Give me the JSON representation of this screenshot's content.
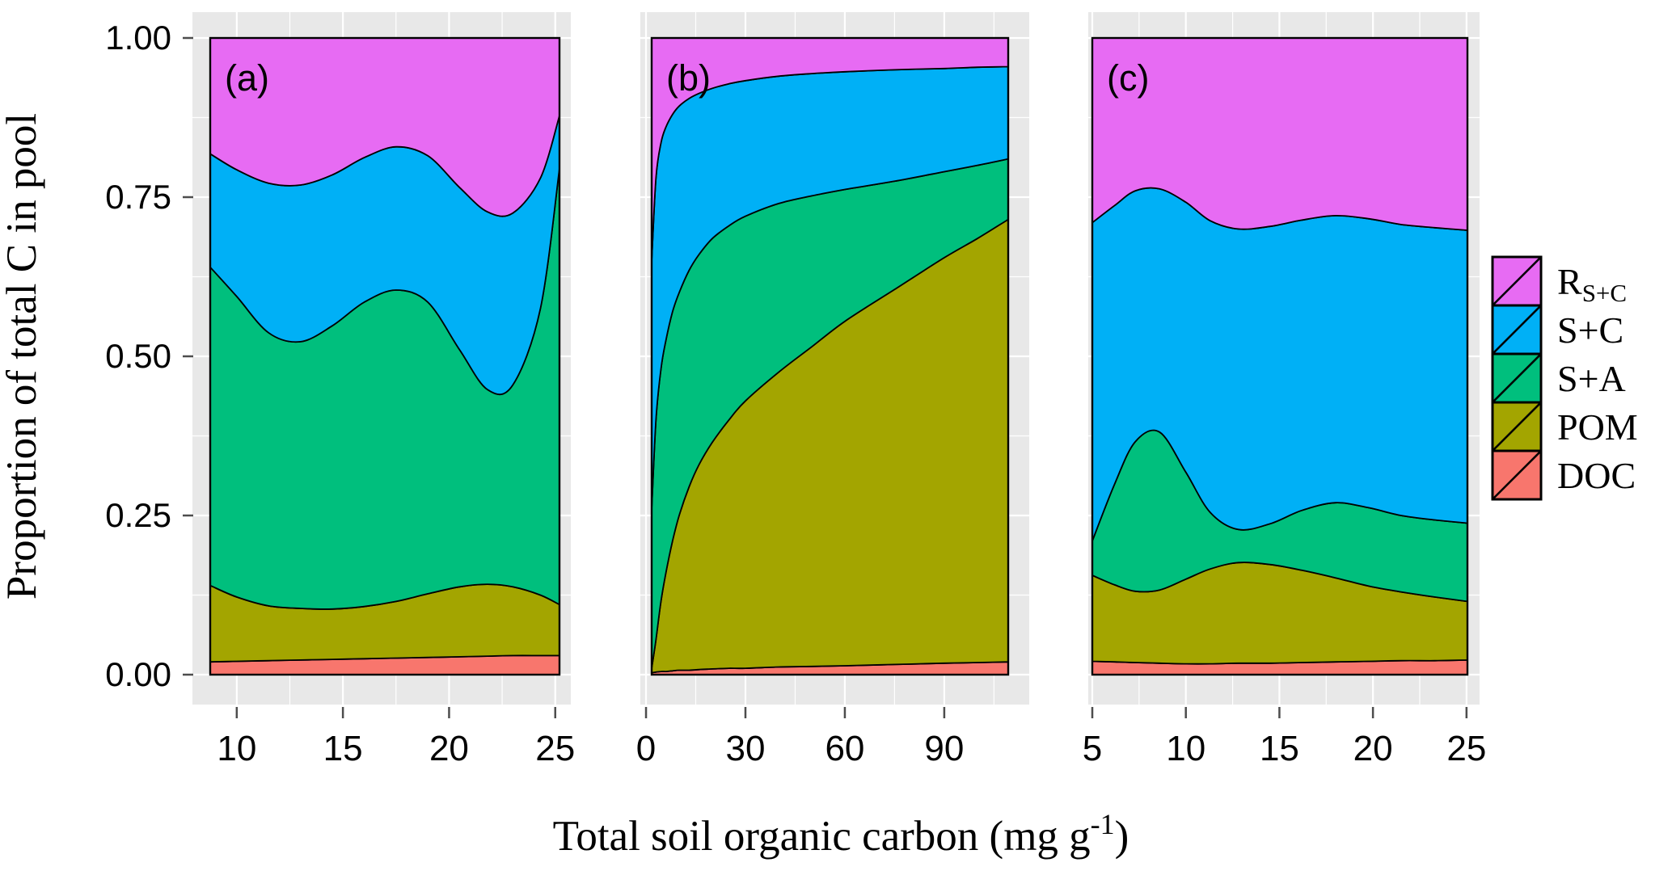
{
  "colors": {
    "rsc": "#E76BF3",
    "sc": "#00B0F6",
    "sa": "#00BF7D",
    "pom": "#A3A500",
    "doc": "#F8766D",
    "panel_bg": "#E8E8E8",
    "grid": "#FFFFFF",
    "frame": "#000000",
    "tick_mark": "#4d4d4d"
  },
  "axes": {
    "y": {
      "title": "Proportion of total C in pool",
      "ticks": [
        {
          "value": 0.0,
          "label": "0.00"
        },
        {
          "value": 0.25,
          "label": "0.25"
        },
        {
          "value": 0.5,
          "label": "0.50"
        },
        {
          "value": 0.75,
          "label": "0.75"
        },
        {
          "value": 1.0,
          "label": "1.00"
        }
      ]
    },
    "x": {
      "title_main": "Total soil organic carbon (mg g",
      "title_sup": "-1",
      "title_close": ")"
    }
  },
  "legend": {
    "entries": [
      {
        "key": "rsc",
        "label_main": "R",
        "label_sub": "S+C",
        "color": "#E76BF3"
      },
      {
        "key": "sc",
        "label": "S+C",
        "color": "#00B0F6"
      },
      {
        "key": "sa",
        "label": "S+A",
        "color": "#00BF7D"
      },
      {
        "key": "pom",
        "label": "POM",
        "color": "#A3A500"
      },
      {
        "key": "doc",
        "label": "DOC",
        "color": "#F8766D"
      }
    ]
  },
  "chart_data": {
    "type": "area",
    "stacked": true,
    "normalized": true,
    "xlabel": "Total soil organic carbon (mg g-1)",
    "ylabel": "Proportion of total C in pool",
    "ylim": [
      0,
      1
    ],
    "grid": true,
    "legend_position": "right",
    "series": [
      {
        "name": "DOC",
        "color_key": "doc"
      },
      {
        "name": "POM",
        "color_key": "pom"
      },
      {
        "name": "S+A",
        "color_key": "sa"
      },
      {
        "name": "S+C",
        "color_key": "sc"
      },
      {
        "name": "R_S+C",
        "color_key": "rsc"
      }
    ],
    "note": "tops are cumulative stacked proportions (0-1) at each x; band = between previous top and own top",
    "panels": [
      {
        "panel_label": "(a)",
        "x_domain": [
          8.75,
          25.2
        ],
        "x_ticks": [
          10,
          15,
          20,
          25
        ],
        "x": [
          8.75,
          10,
          11.5,
          13,
          14.5,
          16,
          17.5,
          19,
          20.5,
          21.8,
          23,
          24.3,
          25.2
        ],
        "tops": {
          "DOC": [
            0.02,
            0.021,
            0.022,
            0.023,
            0.024,
            0.025,
            0.026,
            0.027,
            0.028,
            0.029,
            0.03,
            0.03,
            0.03
          ],
          "POM": [
            0.14,
            0.122,
            0.108,
            0.104,
            0.103,
            0.107,
            0.115,
            0.127,
            0.138,
            0.142,
            0.138,
            0.125,
            0.11
          ],
          "S+A": [
            0.64,
            0.594,
            0.537,
            0.523,
            0.548,
            0.585,
            0.604,
            0.585,
            0.51,
            0.448,
            0.455,
            0.575,
            0.795
          ],
          "S+C": [
            0.818,
            0.793,
            0.772,
            0.769,
            0.785,
            0.812,
            0.829,
            0.815,
            0.765,
            0.727,
            0.725,
            0.78,
            0.878
          ],
          "R_S+C": [
            1,
            1,
            1,
            1,
            1,
            1,
            1,
            1,
            1,
            1,
            1,
            1,
            1
          ]
        }
      },
      {
        "panel_label": "(b)",
        "x_domain": [
          1.7,
          109.3
        ],
        "x_ticks": [
          0,
          30,
          60,
          90
        ],
        "x": [
          1.7,
          3,
          4.5,
          6,
          8,
          10,
          13,
          16,
          20,
          25,
          30,
          40,
          50,
          60,
          75,
          90,
          100,
          109.3
        ],
        "tops": {
          "DOC": [
            0.003,
            0.004,
            0.005,
            0.005,
            0.006,
            0.007,
            0.007,
            0.008,
            0.009,
            0.01,
            0.01,
            0.012,
            0.013,
            0.014,
            0.016,
            0.018,
            0.019,
            0.02
          ],
          "POM": [
            0.01,
            0.055,
            0.115,
            0.16,
            0.21,
            0.25,
            0.295,
            0.33,
            0.365,
            0.4,
            0.43,
            0.475,
            0.515,
            0.555,
            0.605,
            0.655,
            0.685,
            0.715
          ],
          "S+A": [
            0.26,
            0.4,
            0.48,
            0.525,
            0.57,
            0.6,
            0.635,
            0.66,
            0.685,
            0.705,
            0.72,
            0.74,
            0.752,
            0.762,
            0.775,
            0.79,
            0.8,
            0.81
          ],
          "S+C": [
            0.65,
            0.78,
            0.835,
            0.86,
            0.88,
            0.893,
            0.905,
            0.913,
            0.921,
            0.928,
            0.933,
            0.94,
            0.944,
            0.947,
            0.95,
            0.952,
            0.954,
            0.955
          ],
          "R_S+C": [
            1,
            1,
            1,
            1,
            1,
            1,
            1,
            1,
            1,
            1,
            1,
            1,
            1,
            1,
            1,
            1,
            1,
            1
          ]
        }
      },
      {
        "panel_label": "(c)",
        "x_domain": [
          5.0,
          25.05
        ],
        "x_ticks": [
          5,
          10,
          15,
          20,
          25
        ],
        "x": [
          5.0,
          6.2,
          7.3,
          8.6,
          10,
          11.3,
          12.8,
          14.5,
          16.2,
          18,
          19.8,
          21.5,
          23.3,
          25.05
        ],
        "tops": {
          "DOC": [
            0.021,
            0.02,
            0.019,
            0.018,
            0.017,
            0.017,
            0.018,
            0.018,
            0.019,
            0.02,
            0.021,
            0.022,
            0.022,
            0.023
          ],
          "POM": [
            0.156,
            0.141,
            0.131,
            0.133,
            0.15,
            0.166,
            0.176,
            0.173,
            0.164,
            0.152,
            0.139,
            0.13,
            0.122,
            0.115
          ],
          "S+A": [
            0.21,
            0.3,
            0.366,
            0.381,
            0.318,
            0.255,
            0.228,
            0.237,
            0.258,
            0.27,
            0.262,
            0.25,
            0.243,
            0.238
          ],
          "S+C": [
            0.71,
            0.737,
            0.76,
            0.763,
            0.742,
            0.713,
            0.7,
            0.704,
            0.714,
            0.721,
            0.716,
            0.707,
            0.702,
            0.698
          ],
          "R_S+C": [
            1,
            1,
            1,
            1,
            1,
            1,
            1,
            1,
            1,
            1,
            1,
            1,
            1,
            1
          ]
        }
      }
    ]
  }
}
